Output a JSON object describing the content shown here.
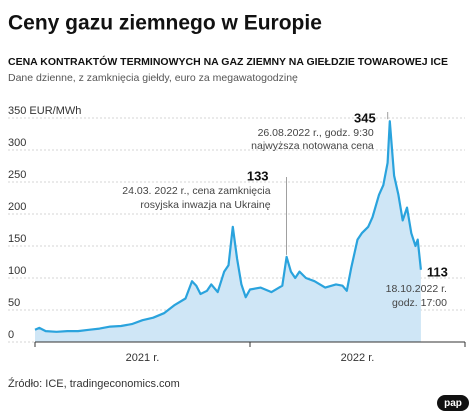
{
  "chart_data": {
    "type": "area",
    "title": "Ceny gazu ziemnego w Europie",
    "subtitle": "CENA KONTRAKTÓW TERMINOWYCH NA GAZ ZIEMNY NA GIEŁDZIE TOWAROWEJ ICE",
    "note": "Dane dzienne, z zamknięcia giełdy, euro za megawatogodzinę",
    "source": "Źródło: ICE, tradingeconomics.com",
    "logo": "pap",
    "color": "#2aa3dd",
    "fill": "#cfe6f6",
    "x": [
      2021.0,
      2021.02,
      2021.05,
      2021.1,
      2021.15,
      2021.2,
      2021.25,
      2021.3,
      2021.35,
      2021.4,
      2021.45,
      2021.5,
      2021.55,
      2021.6,
      2021.65,
      2021.7,
      2021.73,
      2021.75,
      2021.77,
      2021.8,
      2021.82,
      2021.85,
      2021.88,
      2021.9,
      2021.92,
      2021.94,
      2021.96,
      2021.98,
      2022.0,
      2022.05,
      2022.1,
      2022.15,
      2022.17,
      2022.19,
      2022.21,
      2022.23,
      2022.26,
      2022.3,
      2022.35,
      2022.4,
      2022.43,
      2022.45,
      2022.47,
      2022.5,
      2022.52,
      2022.55,
      2022.57,
      2022.6,
      2022.62,
      2022.64,
      2022.65,
      2022.67,
      2022.69,
      2022.71,
      2022.73,
      2022.75,
      2022.77,
      2022.78,
      2022.795
    ],
    "values": [
      19,
      22,
      17,
      16,
      17,
      17,
      19,
      21,
      24,
      25,
      28,
      34,
      38,
      45,
      58,
      68,
      95,
      88,
      75,
      80,
      90,
      78,
      110,
      120,
      180,
      130,
      90,
      70,
      82,
      85,
      78,
      88,
      133,
      110,
      100,
      110,
      100,
      95,
      85,
      90,
      88,
      80,
      115,
      160,
      170,
      180,
      195,
      230,
      245,
      280,
      345,
      260,
      230,
      190,
      210,
      170,
      150,
      160,
      113
    ],
    "xlim": [
      2021,
      2023
    ],
    "year_boundaries": [
      2021,
      2022,
      2023
    ],
    "xticks": [
      {
        "value": 2021.5,
        "label": "2021 r."
      },
      {
        "value": 2022.5,
        "label": "2022 r."
      }
    ],
    "ylim": [
      0,
      350
    ],
    "yticks": [
      0,
      50,
      100,
      150,
      200,
      250,
      300,
      {
        "value": 350,
        "label": "350 EUR/MWh"
      }
    ],
    "grid": true,
    "annotations": [
      {
        "x": 2022.65,
        "value": 345,
        "lines": [
          "26.08.2022 r., godz. 9:30",
          "najwyższa notowana cena"
        ]
      },
      {
        "x": 2022.17,
        "value": 133,
        "lines": [
          "24.03. 2022 r., cena zamknięcia",
          "rosyjska inwazja na Ukrainę"
        ]
      },
      {
        "x": 2022.795,
        "value": 113,
        "lines": [
          "18.10.2022 r.",
          "godz. 17:00"
        ]
      }
    ]
  }
}
